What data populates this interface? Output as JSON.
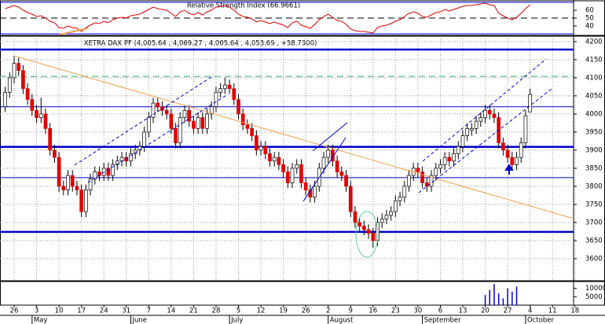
{
  "chart_data": [
    {
      "type": "line",
      "title": "Relative Strength Index (66.9661)",
      "color": "#dd0000",
      "ylim": [
        28,
        72
      ],
      "yticks": [
        60,
        50,
        40
      ],
      "levels": [
        {
          "value": 70,
          "color": "#0000ff",
          "style": "solid"
        },
        {
          "value": 50,
          "color": "#000000",
          "style": "dashed"
        },
        {
          "value": 30,
          "color": "#0000ff",
          "style": "solid"
        }
      ],
      "values": [
        62,
        64,
        66,
        64,
        60,
        57,
        55,
        52,
        53,
        50,
        46,
        44,
        38,
        37,
        40,
        38,
        37,
        33,
        38,
        41,
        44,
        43,
        46,
        44,
        48,
        50,
        51,
        50,
        53,
        54,
        55,
        58,
        61,
        64,
        62,
        61,
        60,
        56,
        52,
        58,
        60,
        56,
        54,
        57,
        54,
        58,
        60,
        64,
        65,
        66,
        64,
        60,
        55,
        52,
        51,
        49,
        45,
        47,
        45,
        43,
        45,
        43,
        41,
        38,
        44,
        46,
        41,
        39,
        37,
        42,
        48,
        52,
        55,
        51,
        47,
        46,
        42,
        36,
        34,
        33,
        33,
        32,
        31,
        38,
        40,
        41,
        43,
        46,
        48,
        52,
        56,
        58,
        56,
        52,
        51,
        54,
        57,
        58,
        61,
        59,
        61,
        63,
        65,
        66,
        66,
        67,
        68,
        69,
        67,
        66,
        56,
        53,
        50,
        48,
        51,
        56,
        62,
        66.9661,
        null,
        null,
        null,
        null,
        null,
        null,
        null,
        null,
        null,
        null
      ]
    },
    {
      "type": "candlestick",
      "title": "XETRA DAX PF (4,005.64 , 4,069.27 , 4,005.64 , 4,053.69 , +58.7300)",
      "up_color": "#ffffff",
      "down_color": "#e00000",
      "ylim": [
        3539,
        4215
      ],
      "yticks": [
        4200,
        4150,
        4100,
        4050,
        4000,
        3950,
        3900,
        3850,
        3800,
        3750,
        3700,
        3650,
        3600
      ],
      "grid": true,
      "levels": [
        {
          "value": 4178,
          "color": "#0000cc",
          "style": "thick"
        },
        {
          "value": 4104,
          "color": "#33aa66",
          "style": "dashed"
        },
        {
          "value": 4020,
          "color": "#0000cc",
          "style": "thin"
        },
        {
          "value": 3909,
          "color": "#0000cc",
          "style": "thick"
        },
        {
          "value": 3824,
          "color": "#0000cc",
          "style": "thin"
        },
        {
          "value": 3674,
          "color": "#0000cc",
          "style": "thick"
        }
      ],
      "categories": [
        null,
        null,
        "26",
        null,
        null,
        null,
        null,
        "3",
        null,
        null,
        null,
        null,
        "10",
        null,
        null,
        null,
        null,
        "17",
        null,
        null,
        null,
        null,
        "24",
        null,
        null,
        null,
        null,
        "31",
        null,
        null,
        null,
        null,
        "7",
        null,
        null,
        null,
        null,
        "14",
        null,
        null,
        null,
        null,
        "21",
        null,
        null,
        null,
        null,
        "28",
        null,
        null,
        null,
        null,
        "5",
        null,
        null,
        null,
        null,
        "12",
        null,
        null,
        null,
        null,
        "19",
        null,
        null,
        null,
        null,
        "26",
        null,
        null,
        null,
        null,
        "2",
        null,
        null,
        null,
        null,
        "9",
        null,
        null,
        null,
        null,
        "16",
        null,
        null,
        null,
        null,
        "23",
        null,
        null,
        null,
        null,
        "30",
        null,
        null,
        null,
        null,
        "6",
        null,
        null,
        null,
        null,
        "13",
        null,
        null,
        null,
        null,
        "20",
        null,
        null,
        null,
        null,
        "27",
        null,
        null,
        null,
        null,
        "4",
        null,
        null,
        null,
        null,
        "11",
        null,
        null,
        null,
        null,
        "18"
      ],
      "months": [
        null,
        null,
        null,
        null,
        null,
        null,
        "May",
        null,
        null,
        null,
        null,
        null,
        null,
        null,
        null,
        null,
        null,
        null,
        null,
        null,
        null,
        null,
        null,
        null,
        null,
        null,
        null,
        null,
        "June",
        null,
        null,
        null,
        null,
        null,
        null,
        null,
        null,
        null,
        null,
        null,
        null,
        null,
        null,
        null,
        null,
        null,
        null,
        null,
        null,
        null,
        "July",
        null,
        null,
        null,
        null,
        null,
        null,
        null,
        null,
        null,
        null,
        null,
        null,
        null,
        null,
        null,
        null,
        null,
        null,
        null,
        null,
        null,
        "August",
        null,
        null,
        null,
        null,
        null,
        null,
        null,
        null,
        null,
        null,
        null,
        null,
        null,
        null,
        null,
        null,
        null,
        null,
        null,
        null,
        "September",
        null,
        null,
        null,
        null,
        null,
        null,
        null,
        null,
        null,
        null,
        null,
        null,
        null,
        null,
        null,
        null,
        null,
        null,
        null,
        null,
        null,
        null,
        "October",
        null,
        null,
        null,
        null,
        null,
        null,
        null,
        null,
        null,
        null,
        null
      ],
      "open": [
        4020,
        4060,
        4100,
        4140,
        4120,
        4070,
        4040,
        4010,
        3990,
        4000,
        3960,
        3900,
        3880,
        3800,
        3790,
        3830,
        3800,
        3790,
        3730,
        3790,
        3820,
        3840,
        3830,
        3850,
        3830,
        3860,
        3870,
        3880,
        3870,
        3890,
        3900,
        3910,
        3950,
        3990,
        4030,
        4020,
        4010,
        4000,
        3960,
        3920,
        3990,
        4010,
        3980,
        3960,
        3990,
        3960,
        4000,
        4020,
        4060,
        4070,
        4080,
        4070,
        4040,
        4000,
        3970,
        3960,
        3940,
        3900,
        3910,
        3890,
        3870,
        3880,
        3860,
        3840,
        3810,
        3850,
        3860,
        3810,
        3790,
        3770,
        3800,
        3850,
        3880,
        3900,
        3870,
        3840,
        3830,
        3800,
        3730,
        3700,
        3690,
        3680,
        3670,
        3650,
        3700,
        3710,
        3720,
        3730,
        3760,
        3770,
        3800,
        3830,
        3850,
        3840,
        3810,
        3800,
        3830,
        3850,
        3860,
        3880,
        3870,
        3890,
        3910,
        3940,
        3955,
        3960,
        3980,
        3990,
        4010,
        4000,
        3990,
        3920,
        3900,
        3880,
        3860,
        3880,
        3920,
        4005.64,
        null,
        null,
        null,
        null,
        null,
        null,
        null,
        null,
        null,
        null
      ],
      "high": [
        4075,
        4115,
        4160,
        4155,
        4135,
        4085,
        4055,
        4025,
        4045,
        4015,
        3975,
        3915,
        3895,
        3815,
        3845,
        3845,
        3815,
        3805,
        3805,
        3835,
        3855,
        3855,
        3865,
        3865,
        3875,
        3885,
        3895,
        3895,
        3905,
        3915,
        3925,
        3965,
        4005,
        4045,
        4045,
        4035,
        4025,
        4015,
        3975,
        4005,
        4025,
        4025,
        3995,
        4005,
        4005,
        4015,
        4035,
        4075,
        4085,
        4100,
        4095,
        4085,
        4055,
        4015,
        3985,
        3975,
        3955,
        3925,
        3925,
        3905,
        3895,
        3895,
        3875,
        3855,
        3865,
        3875,
        3875,
        3825,
        3805,
        3815,
        3865,
        3895,
        3915,
        3915,
        3885,
        3855,
        3845,
        3815,
        3745,
        3715,
        3705,
        3695,
        3685,
        3715,
        3725,
        3735,
        3745,
        3775,
        3785,
        3815,
        3845,
        3865,
        3865,
        3855,
        3825,
        3845,
        3865,
        3875,
        3895,
        3895,
        3905,
        3925,
        3955,
        3975,
        3975,
        3995,
        4005,
        4025,
        4025,
        4015,
        4005,
        3935,
        3915,
        3895,
        3895,
        3935,
        4010,
        4069.27,
        null,
        null,
        null,
        null,
        null,
        null,
        null,
        null,
        null,
        null
      ],
      "low": [
        4005,
        4045,
        4085,
        4105,
        4055,
        4025,
        3995,
        3975,
        3975,
        3945,
        3885,
        3865,
        3785,
        3775,
        3775,
        3785,
        3775,
        3715,
        3715,
        3775,
        3805,
        3815,
        3815,
        3815,
        3815,
        3845,
        3855,
        3855,
        3855,
        3875,
        3885,
        3895,
        3935,
        3975,
        4005,
        3995,
        3985,
        3945,
        3905,
        3905,
        3975,
        3965,
        3945,
        3945,
        3945,
        3945,
        3985,
        4005,
        4045,
        4055,
        4055,
        4025,
        3985,
        3955,
        3945,
        3925,
        3885,
        3885,
        3875,
        3855,
        3855,
        3845,
        3825,
        3795,
        3795,
        3835,
        3795,
        3775,
        3755,
        3755,
        3785,
        3835,
        3865,
        3855,
        3825,
        3815,
        3785,
        3715,
        3685,
        3675,
        3665,
        3655,
        3630,
        3635,
        3685,
        3695,
        3705,
        3715,
        3745,
        3755,
        3785,
        3815,
        3825,
        3795,
        3785,
        3785,
        3815,
        3835,
        3845,
        3855,
        3855,
        3875,
        3895,
        3925,
        3940,
        3945,
        3965,
        3975,
        3985,
        3975,
        3905,
        3885,
        3865,
        3845,
        3845,
        3865,
        3905,
        4005.64,
        null,
        null,
        null,
        null,
        null,
        null,
        null,
        null,
        null,
        null
      ],
      "close": [
        4060,
        4100,
        4140,
        4120,
        4070,
        4040,
        4010,
        3990,
        4000,
        3960,
        3900,
        3880,
        3800,
        3790,
        3830,
        3800,
        3790,
        3730,
        3790,
        3820,
        3840,
        3830,
        3850,
        3830,
        3860,
        3870,
        3880,
        3870,
        3890,
        3900,
        3910,
        3950,
        3990,
        4030,
        4020,
        4010,
        4000,
        3960,
        3920,
        3990,
        4010,
        3980,
        3960,
        3990,
        3960,
        4000,
        4020,
        4060,
        4070,
        4080,
        4070,
        4040,
        4000,
        3970,
        3960,
        3940,
        3900,
        3910,
        3890,
        3870,
        3880,
        3860,
        3840,
        3810,
        3850,
        3860,
        3810,
        3790,
        3770,
        3800,
        3850,
        3880,
        3900,
        3870,
        3840,
        3830,
        3800,
        3730,
        3700,
        3690,
        3680,
        3670,
        3650,
        3700,
        3710,
        3720,
        3730,
        3760,
        3770,
        3800,
        3830,
        3850,
        3840,
        3810,
        3800,
        3830,
        3850,
        3860,
        3880,
        3870,
        3890,
        3910,
        3940,
        3960,
        3960,
        3980,
        3990,
        4010,
        4000,
        3990,
        3920,
        3900,
        3880,
        3860,
        3880,
        3920,
        3994.96,
        4053.69,
        null,
        null,
        null,
        null,
        null,
        null,
        null,
        null,
        null,
        null
      ]
    },
    {
      "type": "bar",
      "color": "#0000cc",
      "ylim": [
        0,
        14000
      ],
      "yticks": [
        10000,
        5000
      ],
      "values": [
        null,
        null,
        null,
        null,
        null,
        null,
        null,
        null,
        null,
        null,
        null,
        null,
        null,
        null,
        null,
        null,
        null,
        null,
        null,
        null,
        null,
        null,
        null,
        null,
        null,
        null,
        null,
        null,
        null,
        null,
        null,
        null,
        null,
        null,
        null,
        null,
        null,
        null,
        null,
        null,
        null,
        null,
        null,
        null,
        null,
        null,
        null,
        null,
        null,
        null,
        null,
        null,
        null,
        null,
        null,
        null,
        null,
        null,
        null,
        null,
        null,
        null,
        null,
        null,
        null,
        null,
        null,
        null,
        null,
        null,
        null,
        null,
        null,
        null,
        null,
        null,
        null,
        null,
        null,
        null,
        null,
        null,
        null,
        null,
        null,
        null,
        null,
        null,
        null,
        null,
        null,
        null,
        null,
        null,
        null,
        null,
        null,
        null,
        null,
        null,
        null,
        null,
        null,
        null,
        null,
        null,
        null,
        6000,
        9000,
        12500,
        7000,
        4000,
        10000,
        8000,
        11000,
        null,
        null,
        null,
        null,
        null,
        null,
        null,
        null,
        null,
        null,
        null,
        null,
        null
      ]
    }
  ]
}
